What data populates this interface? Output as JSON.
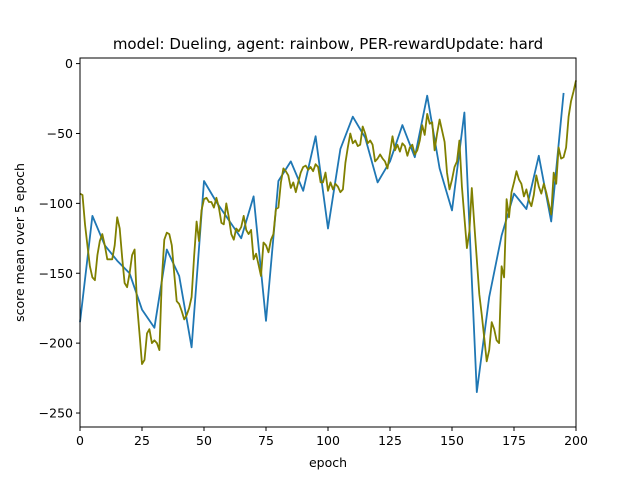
{
  "chart_data": {
    "type": "line",
    "title": "model: Dueling, agent: rainbow, PER-rewardUpdate: hard",
    "xlabel": "epoch",
    "ylabel": "score mean over 5 epoch",
    "xlim": [
      0,
      200
    ],
    "ylim": [
      -260,
      4
    ],
    "xticks": [
      0,
      25,
      50,
      75,
      100,
      125,
      150,
      175,
      200
    ],
    "yticks": [
      0,
      -50,
      -100,
      -150,
      -200,
      -250
    ],
    "xtick_labels": [
      "0",
      "25",
      "50",
      "75",
      "100",
      "125",
      "150",
      "175",
      "200"
    ],
    "ytick_labels": [
      "0",
      "−50",
      "−100",
      "−150",
      "−200",
      "−250"
    ],
    "grid": false,
    "series": [
      {
        "color": "#1f77b4",
        "x": [
          0,
          5,
          10,
          15,
          20,
          25,
          30,
          35,
          40,
          45,
          50,
          55,
          60,
          65,
          70,
          75,
          80,
          85,
          90,
          95,
          100,
          105,
          110,
          115,
          120,
          125,
          130,
          135,
          140,
          145,
          150,
          155,
          160,
          165,
          170,
          175,
          180,
          185,
          190,
          195
        ],
        "y": [
          -185,
          -109,
          -130,
          -141,
          -150,
          -176,
          -189,
          -133,
          -152,
          -203,
          -84,
          -99,
          -112,
          -125,
          -95,
          -184,
          -84,
          -70,
          -91,
          -52,
          -118,
          -61,
          -38,
          -53,
          -85,
          -70,
          -44,
          -67,
          -23,
          -75,
          -105,
          -35,
          -235,
          -167,
          -123,
          -93,
          -104,
          -66,
          -113,
          -21
        ]
      },
      {
        "color": "#808000",
        "x": [
          0,
          1,
          2,
          3,
          4,
          5,
          6,
          7,
          8,
          9,
          10,
          11,
          12,
          13,
          14,
          15,
          16,
          17,
          18,
          19,
          20,
          21,
          22,
          23,
          24,
          25,
          26,
          27,
          28,
          29,
          30,
          31,
          32,
          33,
          34,
          35,
          36,
          37,
          38,
          39,
          40,
          41,
          42,
          43,
          44,
          45,
          46,
          47,
          48,
          49,
          50,
          51,
          52,
          53,
          54,
          55,
          56,
          57,
          58,
          59,
          60,
          61,
          62,
          63,
          64,
          65,
          66,
          67,
          68,
          69,
          70,
          71,
          72,
          73,
          74,
          75,
          76,
          77,
          78,
          79,
          80,
          81,
          82,
          83,
          84,
          85,
          86,
          87,
          88,
          89,
          90,
          91,
          92,
          93,
          94,
          95,
          96,
          97,
          98,
          99,
          100,
          101,
          102,
          103,
          104,
          105,
          106,
          107,
          108,
          109,
          110,
          111,
          112,
          113,
          114,
          115,
          116,
          117,
          118,
          119,
          120,
          121,
          122,
          123,
          124,
          125,
          126,
          127,
          128,
          129,
          130,
          131,
          132,
          133,
          134,
          135,
          136,
          137,
          138,
          139,
          140,
          141,
          142,
          143,
          144,
          145,
          146,
          147,
          148,
          149,
          150,
          151,
          152,
          153,
          154,
          155,
          156,
          157,
          158,
          159,
          160,
          161,
          162,
          163,
          164,
          165,
          166,
          167,
          168,
          169,
          170,
          171,
          172,
          173,
          174,
          175,
          176,
          177,
          178,
          179,
          180,
          181,
          182,
          183,
          184,
          185,
          186,
          187,
          188,
          189,
          190,
          191,
          192,
          193,
          194,
          195,
          196,
          197,
          198,
          199,
          200
        ],
        "y": [
          -93,
          -94,
          -115,
          -130,
          -145,
          -153,
          -155,
          -137,
          -127,
          -122,
          -130,
          -140,
          -140,
          -140,
          -130,
          -110,
          -118,
          -139,
          -157,
          -160,
          -150,
          -137,
          -133,
          -172,
          -193,
          -215,
          -212,
          -193,
          -190,
          -200,
          -198,
          -200,
          -205,
          -155,
          -126,
          -121,
          -122,
          -130,
          -150,
          -170,
          -172,
          -177,
          -183,
          -180,
          -175,
          -167,
          -138,
          -113,
          -127,
          -105,
          -97,
          -96,
          -99,
          -99,
          -103,
          -96,
          -103,
          -114,
          -115,
          -100,
          -110,
          -122,
          -126,
          -118,
          -120,
          -117,
          -109,
          -119,
          -122,
          -119,
          -140,
          -136,
          -144,
          -152,
          -128,
          -130,
          -135,
          -126,
          -122,
          -104,
          -103,
          -85,
          -75,
          -77,
          -80,
          -89,
          -85,
          -92,
          -85,
          -78,
          -74,
          -73,
          -76,
          -74,
          -77,
          -72,
          -74,
          -85,
          -85,
          -78,
          -91,
          -85,
          -90,
          -86,
          -88,
          -92,
          -90,
          -71,
          -60,
          -50,
          -57,
          -55,
          -59,
          -58,
          -45,
          -50,
          -57,
          -55,
          -58,
          -70,
          -68,
          -65,
          -68,
          -70,
          -75,
          -64,
          -52,
          -62,
          -58,
          -63,
          -57,
          -59,
          -66,
          -60,
          -58,
          -65,
          -62,
          -55,
          -44,
          -51,
          -36,
          -43,
          -42,
          -62,
          -50,
          -40,
          -48,
          -56,
          -78,
          -90,
          -83,
          -74,
          -70,
          -55,
          -88,
          -110,
          -132,
          -120,
          -89,
          -115,
          -140,
          -165,
          -180,
          -196,
          -213,
          -205,
          -185,
          -190,
          -198,
          -200,
          -145,
          -153,
          -97,
          -110,
          -92,
          -85,
          -77,
          -83,
          -86,
          -95,
          -90,
          -98,
          -102,
          -94,
          -80,
          -88,
          -93,
          -86,
          -92,
          -100,
          -108,
          -78,
          -86,
          -60,
          -68,
          -67,
          -60,
          -38,
          -27,
          -20,
          -12
        ]
      }
    ]
  }
}
